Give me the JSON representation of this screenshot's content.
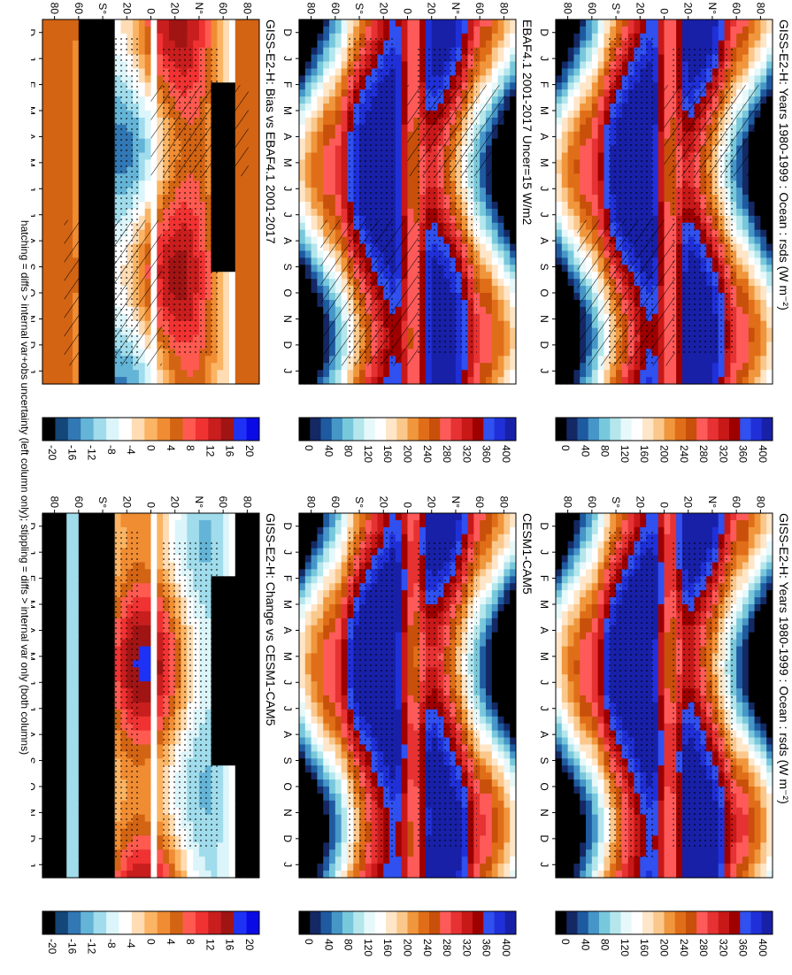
{
  "footnote": "hatching = diffs > internal var+obs uncertainty (left column only); stippling = diffs > internal var only (both columns)",
  "colors": {
    "abs_scale": [
      "#1820a8",
      "#2030d8",
      "#3050f0",
      "#9e0000",
      "#c81818",
      "#e63232",
      "#ff5a5a",
      "#c8500a",
      "#e06e18",
      "#f0963c",
      "#fac88c",
      "#ffe6c8",
      "#ffffff",
      "#e6f8fa",
      "#b4e6ec",
      "#78c8dc",
      "#4696c8",
      "#1e5aa0",
      "#142864",
      "#000000"
    ],
    "diff_scale": [
      "#0a0ae6",
      "#1e32f5",
      "#a01414",
      "#c81e1e",
      "#f03232",
      "#ff5a50",
      "#d26414",
      "#f08c32",
      "#fab464",
      "#ffdcb4",
      "#ffffff",
      "#dcf5fa",
      "#a0dceb",
      "#64b4d7",
      "#3278b4",
      "#144678",
      "#000000"
    ]
  },
  "chart_data": [
    {
      "type": "heatmap",
      "title": "GISS-E2-H: Years 1980-1999 : Ocean : rsds (W m⁻²)",
      "x_tick_labels": [
        "D",
        "J",
        "F",
        "M",
        "A",
        "M",
        "J",
        "J",
        "A",
        "S",
        "O",
        "N",
        "D",
        "J"
      ],
      "y_tick_labels": [
        "80",
        "60",
        "N°",
        "20",
        "0",
        "20",
        "S°",
        "60",
        "80"
      ],
      "colorbar_labels": [
        "400",
        "360",
        "320",
        "280",
        "240",
        "200",
        "160",
        "120",
        "80",
        "40",
        "0"
      ],
      "zlim": [
        0,
        420
      ],
      "hatching": true,
      "stippling": true
    },
    {
      "type": "heatmap",
      "title": "GISS-E2-H: Years 1980-1999 : Ocean : rsds (W m⁻²)",
      "x_tick_labels": [
        "D",
        "J",
        "F",
        "M",
        "A",
        "M",
        "J",
        "J",
        "A",
        "S",
        "O",
        "N",
        "D",
        "J"
      ],
      "y_tick_labels": [
        "80",
        "60",
        "N°",
        "20",
        "0",
        "20",
        "S°",
        "60",
        "80"
      ],
      "colorbar_labels": [
        "400",
        "360",
        "320",
        "280",
        "240",
        "200",
        "160",
        "120",
        "80",
        "40",
        "0"
      ],
      "zlim": [
        0,
        420
      ],
      "hatching": false,
      "stippling": true
    },
    {
      "type": "heatmap",
      "title": "EBAF4.1 2001-2017 Uncer=15 W/m2",
      "x_tick_labels": [
        "D",
        "J",
        "F",
        "M",
        "A",
        "M",
        "J",
        "J",
        "A",
        "S",
        "O",
        "N",
        "D",
        "J"
      ],
      "y_tick_labels": [
        "80",
        "60",
        "N°",
        "20",
        "0",
        "20",
        "S°",
        "60",
        "80"
      ],
      "colorbar_labels": [
        "400",
        "360",
        "320",
        "280",
        "240",
        "200",
        "160",
        "120",
        "80",
        "40",
        "0"
      ],
      "zlim": [
        0,
        420
      ],
      "hatching": true,
      "stippling": true
    },
    {
      "type": "heatmap",
      "title": "CESM1-CAM5",
      "x_tick_labels": [
        "D",
        "J",
        "F",
        "M",
        "A",
        "M",
        "J",
        "J",
        "A",
        "S",
        "O",
        "N",
        "D",
        "J"
      ],
      "y_tick_labels": [
        "80",
        "60",
        "N°",
        "20",
        "0",
        "20",
        "S°",
        "60",
        "80"
      ],
      "colorbar_labels": [
        "400",
        "360",
        "320",
        "280",
        "240",
        "200",
        "160",
        "120",
        "80",
        "40",
        "0"
      ],
      "zlim": [
        0,
        420
      ],
      "hatching": false,
      "stippling": true
    },
    {
      "type": "heatmap",
      "title": "GISS-E2-H: Bias vs EBAF4.1 2001-2017",
      "x_tick_labels": [
        "D",
        "J",
        "F",
        "M",
        "A",
        "M",
        "J",
        "J",
        "A",
        "S",
        "O",
        "N",
        "D",
        "J"
      ],
      "y_tick_labels": [
        "80",
        "60",
        "N°",
        "20",
        "0",
        "20",
        "S°",
        "60",
        "80"
      ],
      "colorbar_labels": [
        "20",
        "16",
        "12",
        "8",
        "4",
        "0",
        "-4",
        "-8",
        "-12",
        "-16",
        "-20"
      ],
      "zlim": [
        -22,
        22
      ],
      "hatching": true,
      "stippling": true
    },
    {
      "type": "heatmap",
      "title": "GISS-E2-H: Change vs CESM1-CAM5",
      "x_tick_labels": [
        "D",
        "J",
        "F",
        "M",
        "A",
        "M",
        "J",
        "J",
        "A",
        "S",
        "O",
        "N",
        "D",
        "J"
      ],
      "y_tick_labels": [
        "80",
        "60",
        "N°",
        "20",
        "0",
        "20",
        "S°",
        "60",
        "80"
      ],
      "colorbar_labels": [
        "20",
        "16",
        "12",
        "8",
        "4",
        "0",
        "-4",
        "-8",
        "-12",
        "-16",
        "-20"
      ],
      "zlim": [
        -22,
        22
      ],
      "hatching": false,
      "stippling": true
    }
  ]
}
